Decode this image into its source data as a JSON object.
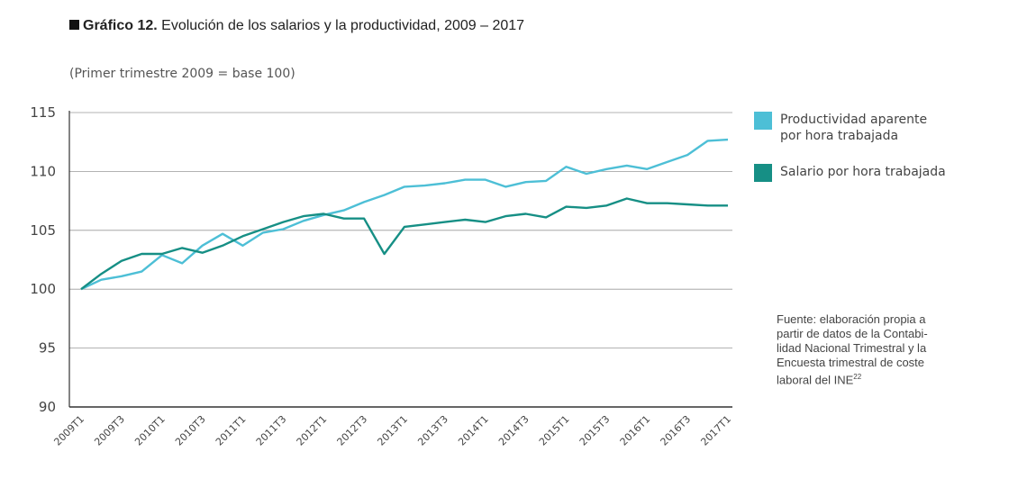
{
  "header": {
    "figure_label": "Gráfico 12.",
    "title_text": " Evolución de los salarios y la productividad, 2009 – 2017",
    "subtitle": "(Primer trimestre 2009 = base 100)"
  },
  "legend": {
    "items": [
      {
        "label": "Productividad aparente\npor hora trabajada",
        "color": "#4dbfd6"
      },
      {
        "label": "Salario por hora trabajada",
        "color": "#168f85"
      }
    ]
  },
  "source": {
    "text": "Fuente: elaboración propia a partir de datos de la Contabi-lidad Nacional Trimestral y la Encuesta trimestral de coste laboral del INE",
    "footnote": "22"
  },
  "chart_data": {
    "type": "line",
    "title": "Evolución de los salarios y la productividad, 2009 – 2017",
    "subtitle": "(Primer trimestre 2009 = base 100)",
    "xlabel": "",
    "ylabel": "",
    "ylim": [
      90,
      115
    ],
    "yticks": [
      90,
      95,
      100,
      105,
      110,
      115
    ],
    "grid": true,
    "legend_position": "right",
    "x": [
      "2009T1",
      "2009T2",
      "2009T3",
      "2009T4",
      "2010T1",
      "2010T2",
      "2010T3",
      "2010T4",
      "2011T1",
      "2011T2",
      "2011T3",
      "2011T4",
      "2012T1",
      "2012T2",
      "2012T3",
      "2012T4",
      "2013T1",
      "2013T2",
      "2013T3",
      "2013T4",
      "2014T1",
      "2014T2",
      "2014T3",
      "2014T4",
      "2015T1",
      "2015T2",
      "2015T3",
      "2015T4",
      "2016T1",
      "2016T2",
      "2016T3",
      "2016T4",
      "2017T1"
    ],
    "x_tick_labels": [
      "2009T1",
      "2009T3",
      "2010T1",
      "2010T3",
      "2011T1",
      "2011T3",
      "2012T1",
      "2012T3",
      "2013T1",
      "2013T3",
      "2014T1",
      "2014T3",
      "2015T1",
      "2015T3",
      "2016T1",
      "2016T3",
      "2017T1"
    ],
    "series": [
      {
        "name": "Productividad aparente por hora trabajada",
        "color": "#4dbfd6",
        "values": [
          100.0,
          100.8,
          101.1,
          101.5,
          102.9,
          102.2,
          103.7,
          104.7,
          103.7,
          104.8,
          105.1,
          105.8,
          106.3,
          106.7,
          107.4,
          108.0,
          108.7,
          108.8,
          109.0,
          109.3,
          109.3,
          108.7,
          109.1,
          109.2,
          110.4,
          109.8,
          110.2,
          110.5,
          110.2,
          110.8,
          111.4,
          112.6,
          112.7
        ]
      },
      {
        "name": "Salario por hora trabajada",
        "color": "#168f85",
        "values": [
          100.0,
          101.3,
          102.4,
          103.0,
          103.0,
          103.5,
          103.1,
          103.7,
          104.5,
          105.1,
          105.7,
          106.2,
          106.4,
          106.0,
          106.0,
          103.0,
          105.3,
          105.5,
          105.7,
          105.9,
          105.7,
          106.2,
          106.4,
          106.1,
          107.0,
          106.9,
          107.1,
          107.7,
          107.3,
          107.3,
          107.2,
          107.1,
          107.1
        ]
      }
    ]
  }
}
